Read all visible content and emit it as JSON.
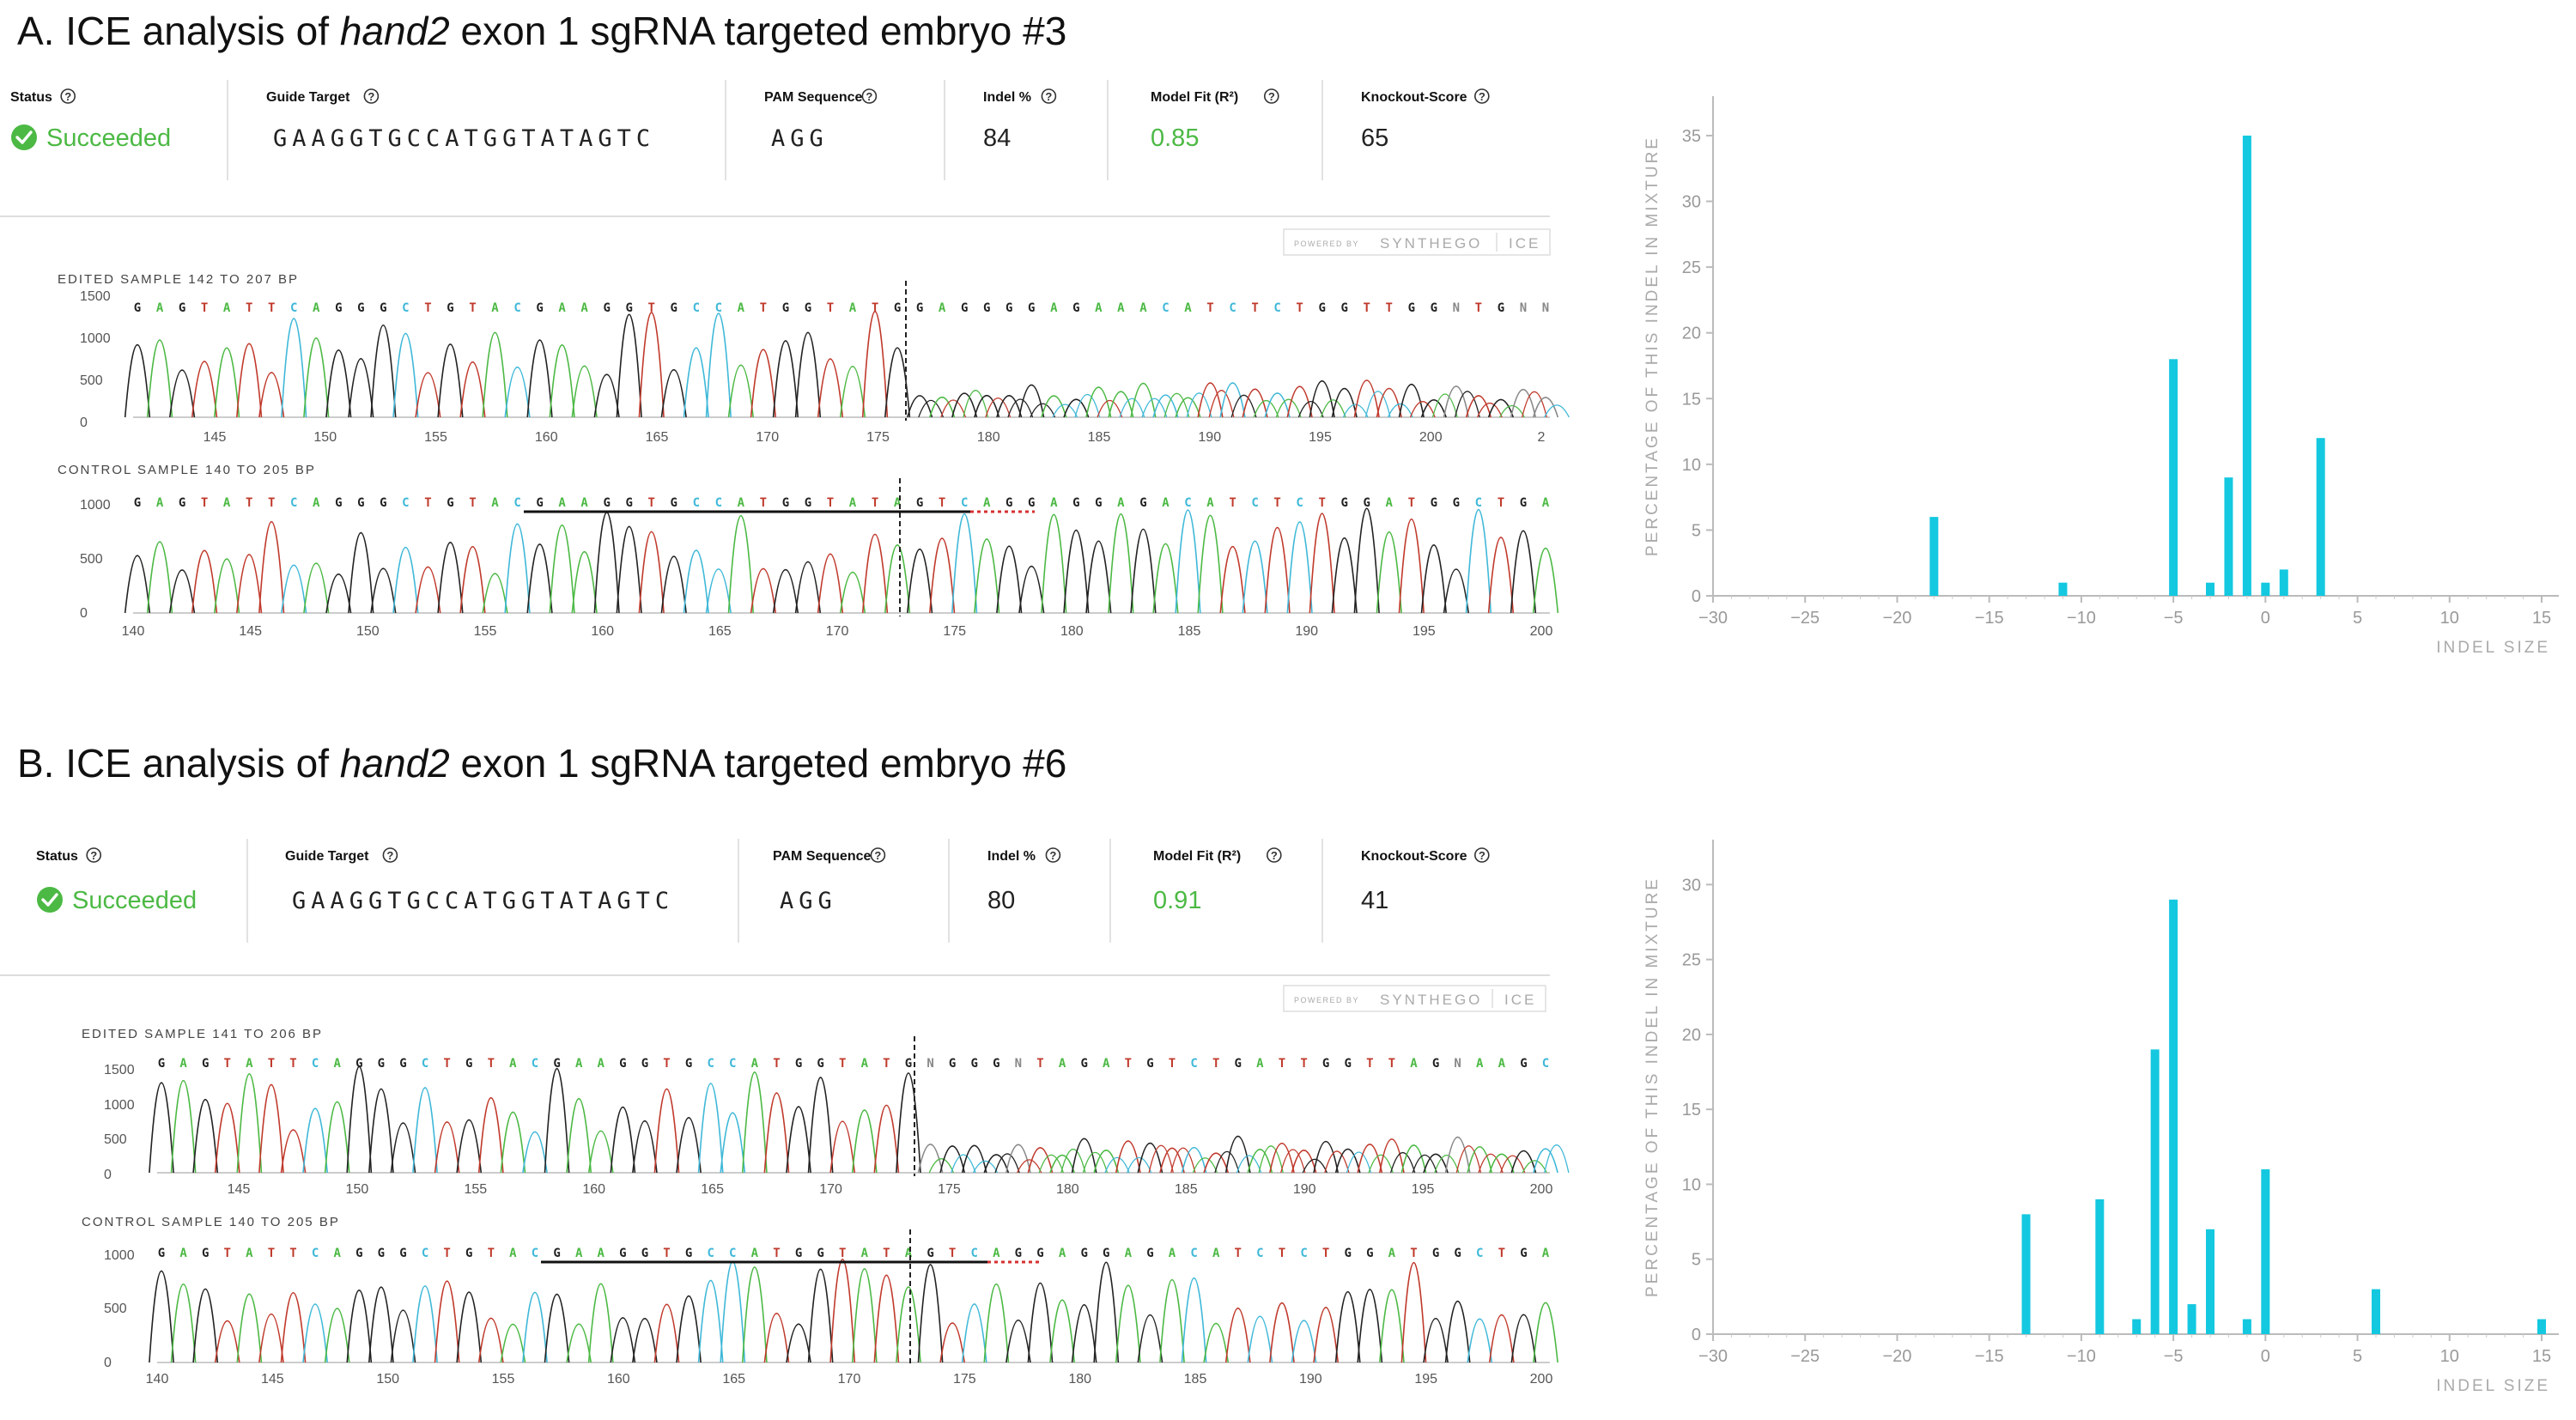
{
  "panels": [
    {
      "title_prefix": "A. ICE analysis of ",
      "title_gene": "hand2",
      "title_suffix": " exon 1 sgRNA targeted embryo #3",
      "status_label": "Status",
      "status_value": "Succeeded",
      "guide_label": "Guide Target",
      "guide_value": "GAAGGTGCCATGGTATAGTC",
      "pam_label": "PAM Sequence",
      "pam_value": "AGG",
      "indel_label": "Indel %",
      "indel_value": "84",
      "fit_label": "Model Fit (R²)",
      "fit_value": "0.85",
      "ko_label": "Knockout-Score",
      "ko_value": "65",
      "brand_powered": "POWERED BY",
      "brand_name": "SYNTHEGO",
      "brand_ice": "ICE",
      "edited": {
        "label": "EDITED SAMPLE 142 TO 207 BP",
        "yticks": [
          "1500",
          "1000",
          "500",
          "0"
        ],
        "xticks": [
          "145",
          "150",
          "155",
          "160",
          "165",
          "170",
          "175",
          "180",
          "185",
          "190",
          "195",
          "200",
          "2"
        ],
        "bases": "GAGTATTCAGGGCTGTACGAAGGTGCCATGGTATGGAGGGGAGAAACATCTCTGGTTGGNTGNN"
      },
      "control": {
        "label": "CONTROL SAMPLE 140 TO 205 BP",
        "yticks": [
          "1000",
          "500",
          "0"
        ],
        "xticks": [
          "140",
          "145",
          "150",
          "155",
          "160",
          "165",
          "170",
          "175",
          "180",
          "185",
          "190",
          "195",
          "200"
        ],
        "bases": "GAGTATTCAGGGCTGTACGAAGGTGCCATGGTATAGTCAGGAGGAGACATCTCTGGATGGCTGA"
      }
    },
    {
      "title_prefix": "B. ICE analysis of ",
      "title_gene": "hand2",
      "title_suffix": " exon 1 sgRNA targeted embryo #6",
      "status_label": "Status",
      "status_value": "Succeeded",
      "guide_label": "Guide Target",
      "guide_value": "GAAGGTGCCATGGTATAGTC",
      "pam_label": "PAM Sequence",
      "pam_value": "AGG",
      "indel_label": "Indel %",
      "indel_value": "80",
      "fit_label": "Model Fit (R²)",
      "fit_value": "0.91",
      "ko_label": "Knockout-Score",
      "ko_value": "41",
      "brand_powered": "POWERED BY",
      "brand_name": "SYNTHEGO",
      "brand_ice": "ICE",
      "edited": {
        "label": "EDITED SAMPLE 141 TO 206 BP",
        "yticks": [
          "1500",
          "1000",
          "500",
          "0"
        ],
        "xticks": [
          "145",
          "150",
          "155",
          "160",
          "165",
          "170",
          "175",
          "180",
          "185",
          "190",
          "195",
          "200"
        ],
        "bases": "GAGTATTCAGGGCTGTACGAAGGTGCCATGGTATGNGGGNTAGATGTCTGATTGGTTAGNAAGC"
      },
      "control": {
        "label": "CONTROL SAMPLE 140 TO 205 BP",
        "yticks": [
          "1000",
          "500",
          "0"
        ],
        "xticks": [
          "140",
          "145",
          "150",
          "155",
          "160",
          "165",
          "170",
          "175",
          "180",
          "185",
          "190",
          "195",
          "200"
        ],
        "bases": "GAGTATTCAGGGCTGTACGAAGGTGCCATGGTATAGTCAGGAGGAGACATCTCTGGATGGCTGA"
      }
    }
  ],
  "colors": {
    "bar": "#14C8E0",
    "status_green": "#4CB944",
    "A": "#4CB944",
    "C": "#3FB8D8",
    "G": "#222222",
    "T": "#C0392B",
    "N": "#888888"
  },
  "chart_data": [
    {
      "type": "bar",
      "xlabel": "INDEL SIZE",
      "ylabel": "PERCENTAGE OF THIS INDEL IN MIXTURE",
      "xlim": [
        -30,
        15
      ],
      "ylim": [
        0,
        38
      ],
      "xticks": [
        -30,
        -25,
        -20,
        -15,
        -10,
        -5,
        0,
        5,
        10,
        15
      ],
      "yticks": [
        0,
        5,
        10,
        15,
        20,
        25,
        30,
        35
      ],
      "x": [
        -18,
        -11,
        -5,
        -3,
        -2,
        -1,
        0,
        1,
        3
      ],
      "values": [
        6,
        1,
        18,
        1,
        9,
        35,
        1,
        2,
        12
      ]
    },
    {
      "type": "bar",
      "xlabel": "INDEL SIZE",
      "ylabel": "PERCENTAGE OF THIS INDEL IN MIXTURE",
      "xlim": [
        -30,
        15
      ],
      "ylim": [
        0,
        33
      ],
      "xticks": [
        -30,
        -25,
        -20,
        -15,
        -10,
        -5,
        0,
        5,
        10,
        15
      ],
      "yticks": [
        0,
        5,
        10,
        15,
        20,
        25,
        30
      ],
      "x": [
        -13,
        -9,
        -7,
        -6,
        -5,
        -4,
        -3,
        -1,
        0,
        6,
        15
      ],
      "values": [
        8,
        9,
        1,
        19,
        29,
        2,
        7,
        1,
        11,
        3,
        1
      ]
    }
  ]
}
